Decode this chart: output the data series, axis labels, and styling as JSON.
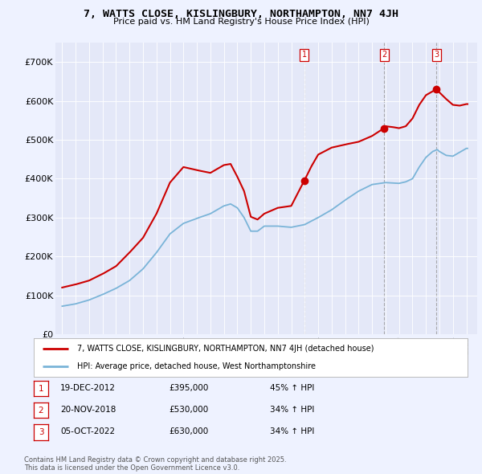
{
  "title": "7, WATTS CLOSE, KISLINGBURY, NORTHAMPTON, NN7 4JH",
  "subtitle": "Price paid vs. HM Land Registry's House Price Index (HPI)",
  "background_color": "#eef2ff",
  "plot_bg_color": "#e4e8f8",
  "legend_line1": "7, WATTS CLOSE, KISLINGBURY, NORTHAMPTON, NN7 4JH (detached house)",
  "legend_line2": "HPI: Average price, detached house, West Northamptonshire",
  "footer": "Contains HM Land Registry data © Crown copyright and database right 2025.\nThis data is licensed under the Open Government Licence v3.0.",
  "transactions": [
    {
      "num": 1,
      "date": "19-DEC-2012",
      "price": 395000,
      "hpi_change": "45% ↑ HPI",
      "year": 2012.97
    },
    {
      "num": 2,
      "date": "20-NOV-2018",
      "price": 530000,
      "hpi_change": "34% ↑ HPI",
      "year": 2018.89
    },
    {
      "num": 3,
      "date": "05-OCT-2022",
      "price": 630000,
      "hpi_change": "34% ↑ HPI",
      "year": 2022.76
    }
  ],
  "hpi_color": "#7ab4d8",
  "price_color": "#cc0000",
  "ylim": [
    0,
    750000
  ],
  "yticks": [
    0,
    100000,
    200000,
    300000,
    400000,
    500000,
    600000,
    700000
  ],
  "ytick_labels": [
    "£0",
    "£100K",
    "£200K",
    "£300K",
    "£400K",
    "£500K",
    "£600K",
    "£700K"
  ],
  "xlim_start": 1994.5,
  "xlim_end": 2025.8,
  "xticks": [
    1995,
    1996,
    1997,
    1998,
    1999,
    2000,
    2001,
    2002,
    2003,
    2004,
    2005,
    2006,
    2007,
    2008,
    2009,
    2010,
    2011,
    2012,
    2013,
    2014,
    2015,
    2016,
    2017,
    2018,
    2019,
    2020,
    2021,
    2022,
    2023,
    2024,
    2025
  ]
}
